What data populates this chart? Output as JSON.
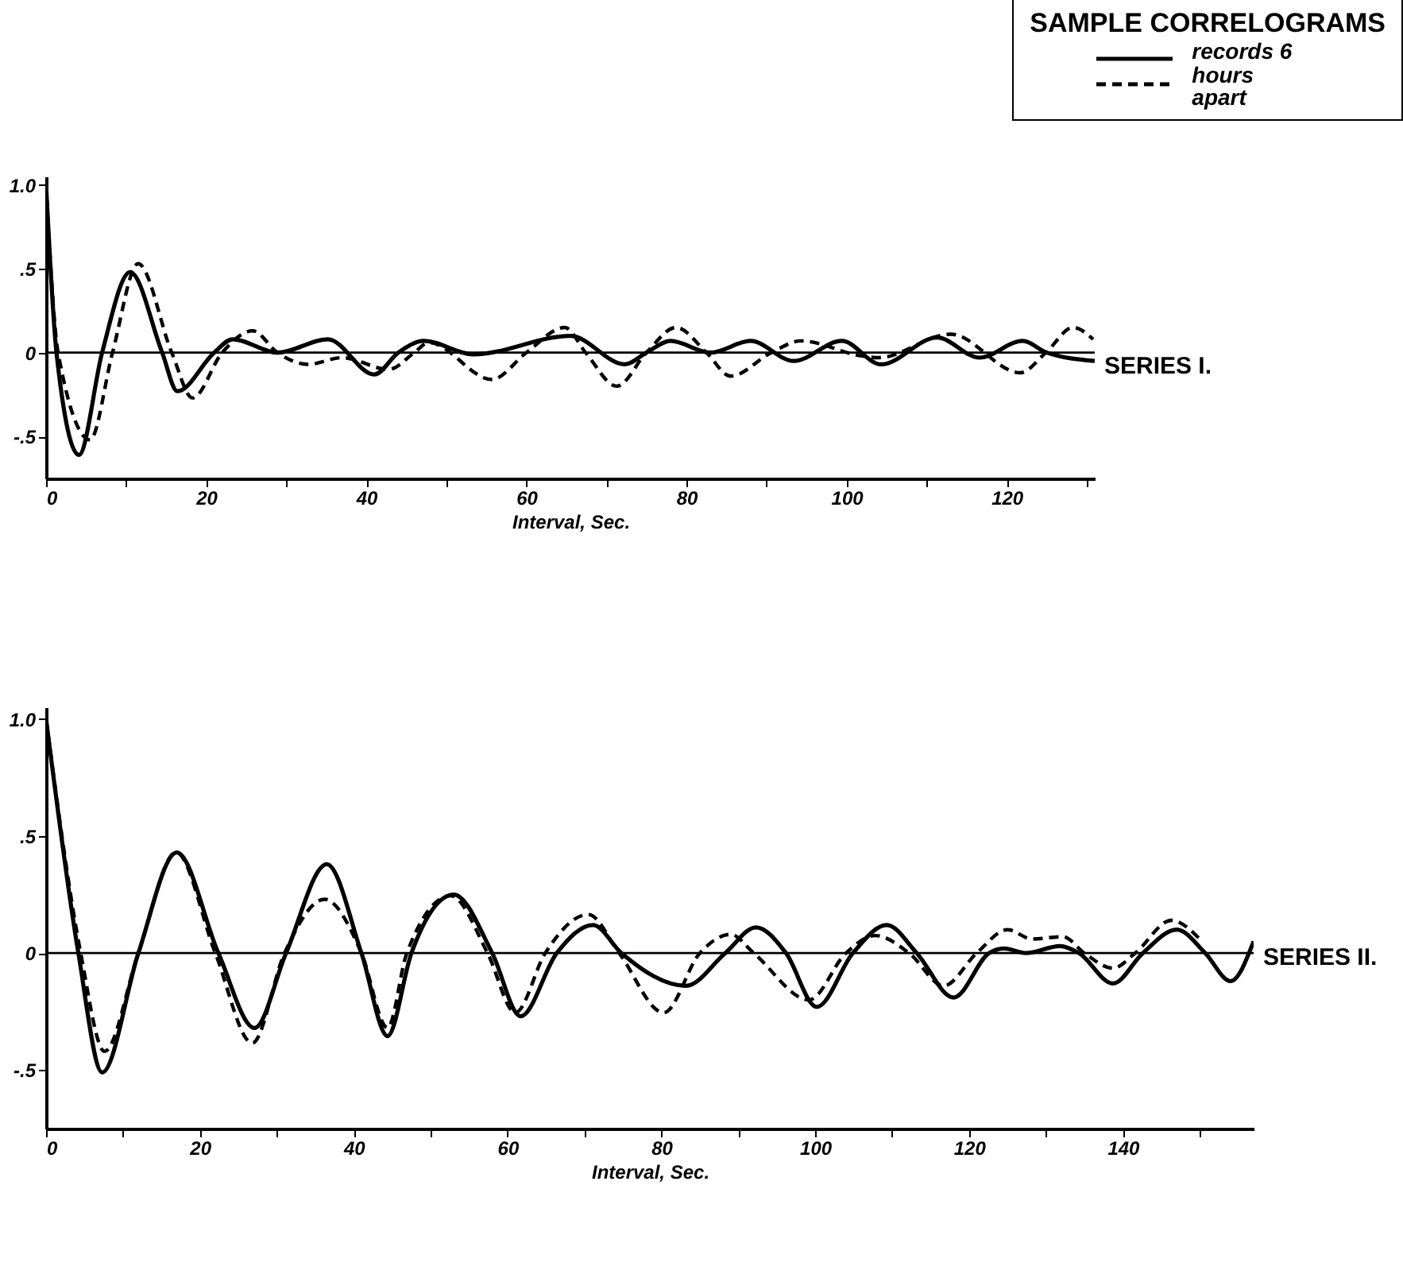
{
  "chart_data": [
    {
      "type": "line",
      "title": "SERIES I.",
      "legend_title": "SAMPLE CORRELOGRAMS",
      "annotations": [
        "records 6 hours apart"
      ],
      "xlabel": "Interval, Sec.",
      "grid": false,
      "xlim": [
        0,
        131
      ],
      "xticks": [
        0,
        {
          "value": 10,
          "label": null
        },
        20,
        {
          "value": 30,
          "label": null
        },
        40,
        {
          "value": 50,
          "label": null
        },
        60,
        {
          "value": 70,
          "label": null
        },
        80,
        {
          "value": 90,
          "label": null
        },
        100,
        {
          "value": 110,
          "label": null
        },
        120,
        {
          "value": 130,
          "label": null
        }
      ],
      "ylim": [
        -0.75,
        1.05
      ],
      "yticks": [
        {
          "value": -0.5,
          "label": "-.5"
        },
        0,
        {
          "value": 0.5,
          "label": ".5"
        },
        {
          "value": 1,
          "label": "1.0"
        }
      ],
      "ref_lines": [
        {
          "axis": "y",
          "value": 0,
          "color": "#000000"
        }
      ],
      "series": [
        {
          "color": "#000000",
          "line_style": "solid",
          "x": [
            0,
            1.3,
            4.1,
            7,
            10.5,
            14.5,
            16.4,
            21,
            23.3,
            28.9,
            35.2,
            41,
            44,
            47.2,
            53.4,
            65.5,
            72.3,
            75,
            78,
            83,
            88,
            93.4,
            99.4,
            104.3,
            111.3,
            116.6,
            122,
            125,
            131
          ],
          "values": [
            1,
            0,
            -0.61,
            0,
            0.48,
            0,
            -0.23,
            0,
            0.08,
            0,
            0.08,
            -0.13,
            0,
            0.07,
            -0.01,
            0.1,
            -0.07,
            0,
            0.07,
            0,
            0.07,
            -0.05,
            0.07,
            -0.07,
            0.09,
            -0.03,
            0.07,
            0,
            -0.05
          ]
        },
        {
          "color": "#000000",
          "line_style": "dashed",
          "x": [
            0,
            1.5,
            5.5,
            8.3,
            11.5,
            15.7,
            18.3,
            22,
            25.8,
            28.9,
            32.7,
            37,
            42.8,
            46,
            47.8,
            55.7,
            60,
            64.8,
            67.4,
            71.3,
            75,
            78.7,
            82.5,
            85.5,
            90.6,
            94.3,
            101.9,
            104,
            113,
            121.7,
            124.9,
            128.3,
            130.8
          ],
          "values": [
            1,
            0,
            -0.52,
            0,
            0.53,
            0,
            -0.27,
            0,
            0.13,
            0,
            -0.07,
            -0.03,
            -0.1,
            0,
            0.06,
            -0.16,
            0,
            0.15,
            0,
            -0.2,
            0,
            0.15,
            0,
            -0.14,
            0,
            0.07,
            -0.02,
            -0.03,
            0.11,
            -0.12,
            0,
            0.15,
            0.08
          ]
        }
      ]
    },
    {
      "type": "line",
      "title": "SERIES II.",
      "xlabel": "Interval, Sec.",
      "grid": false,
      "xlim": [
        0,
        157
      ],
      "xticks": [
        0,
        {
          "value": 10,
          "label": null
        },
        20,
        {
          "value": 30,
          "label": null
        },
        40,
        {
          "value": 50,
          "label": null
        },
        60,
        {
          "value": 70,
          "label": null
        },
        80,
        {
          "value": 90,
          "label": null
        },
        100,
        {
          "value": 110,
          "label": null
        },
        120,
        {
          "value": 130,
          "label": null
        },
        140,
        {
          "value": 150,
          "label": null
        }
      ],
      "ylim": [
        -0.75,
        1.05
      ],
      "yticks": [
        {
          "value": -0.5,
          "label": "-.5"
        },
        0,
        {
          "value": 0.5,
          "label": ".5"
        },
        {
          "value": 1,
          "label": "1.0"
        }
      ],
      "ref_lines": [
        {
          "axis": "y",
          "value": 0,
          "color": "#000000"
        }
      ],
      "series": [
        {
          "color": "#000000",
          "line_style": "solid",
          "x": [
            0,
            4.2,
            7.3,
            12,
            17,
            22.4,
            27.1,
            31.2,
            36.5,
            41,
            44.4,
            47.5,
            53,
            58,
            61.7,
            66.4,
            71.1,
            74.8,
            83.2,
            88.3,
            92.3,
            96.2,
            100.2,
            104.9,
            109.3,
            113.2,
            118,
            122.6,
            124.5,
            127.4,
            131.8,
            134.3,
            138.7,
            142.6,
            147,
            150.7,
            154,
            157
          ],
          "values": [
            1,
            0,
            -0.51,
            0,
            0.43,
            0,
            -0.32,
            0,
            0.38,
            0,
            -0.355,
            0,
            0.25,
            0,
            -0.27,
            0,
            0.12,
            0,
            -0.14,
            0,
            0.11,
            0,
            -0.23,
            0,
            0.12,
            0,
            -0.19,
            0,
            0.02,
            0,
            0.03,
            0,
            -0.13,
            0,
            0.1,
            0,
            -0.12,
            0.05
          ]
        },
        {
          "color": "#000000",
          "line_style": "dashed",
          "x": [
            0,
            4.5,
            7.6,
            12,
            16.9,
            22,
            26.8,
            31,
            36.2,
            41,
            44.4,
            46.9,
            52.6,
            57.4,
            61,
            64.9,
            70.5,
            74.5,
            80.3,
            85,
            89,
            92,
            99.2,
            104,
            107.8,
            112.2,
            116.7,
            121,
            125,
            128.2,
            132.2,
            135,
            138.7,
            141.6,
            146.3,
            150
          ],
          "values": [
            1,
            0,
            -0.42,
            0,
            0.43,
            0,
            -0.385,
            0,
            0.23,
            0,
            -0.32,
            0,
            0.245,
            0,
            -0.255,
            0,
            0.165,
            0,
            -0.255,
            0,
            0.08,
            0,
            -0.2,
            0,
            0.075,
            0,
            -0.14,
            0,
            0.1,
            0.06,
            0.07,
            0,
            -0.065,
            0,
            0.14,
            0.06
          ]
        }
      ]
    }
  ]
}
